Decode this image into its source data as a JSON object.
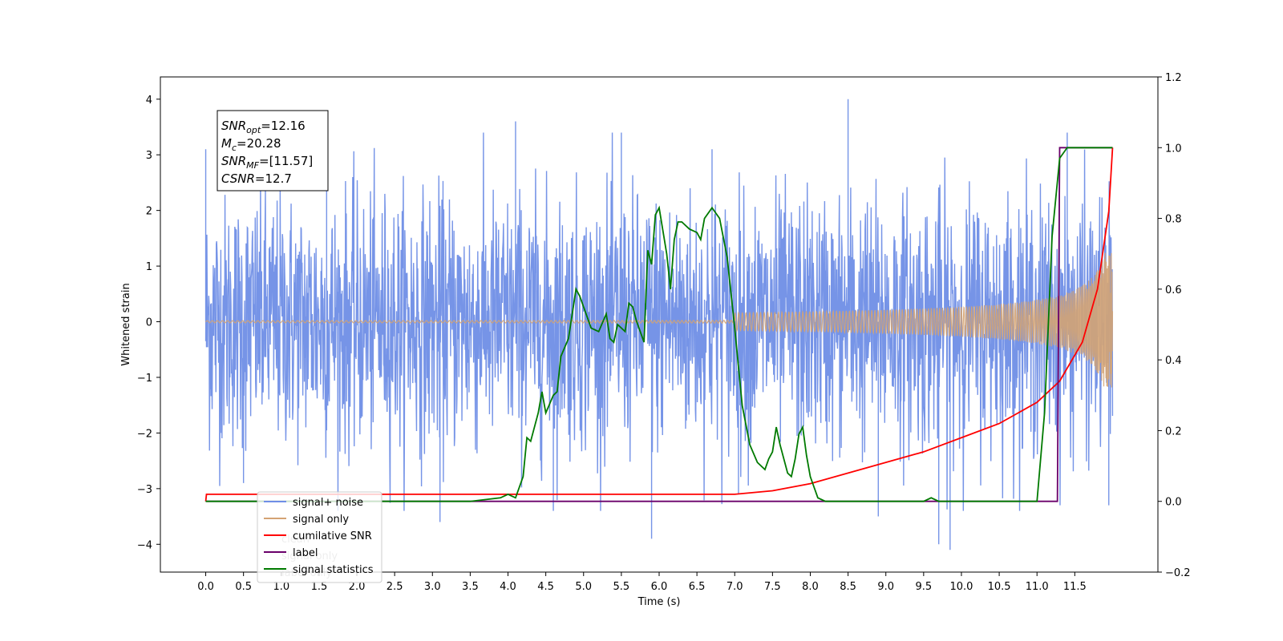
{
  "chart_data": {
    "type": "line",
    "xlabel": "Time (s)",
    "ylabel": "Whitened strain",
    "xlim": [
      -0.6,
      12.6
    ],
    "ylim": [
      -4.5,
      4.4
    ],
    "y2lim": [
      -0.2,
      1.2
    ],
    "x_ticks": [
      0.0,
      0.5,
      1.0,
      1.5,
      2.0,
      2.5,
      3.0,
      3.5,
      4.0,
      4.5,
      5.0,
      5.5,
      6.0,
      6.5,
      7.0,
      7.5,
      8.0,
      8.5,
      9.0,
      9.5,
      10.0,
      10.5,
      11.0,
      11.5
    ],
    "x_tick_labels": [
      "0.0",
      "0.5",
      "1.0",
      "1.5",
      "2.0",
      "2.5",
      "3.0",
      "3.5",
      "4.0",
      "4.5",
      "5.0",
      "5.5",
      "6.0",
      "6.5",
      "7.0",
      "7.5",
      "8.0",
      "8.5",
      "9.0",
      "9.5",
      "10.0",
      "10.5",
      "11.0",
      "11.5"
    ],
    "y_ticks": [
      -4,
      -3,
      -2,
      -1,
      0,
      1,
      2,
      3,
      4
    ],
    "y_tick_labels": [
      "−4",
      "−3",
      "−2",
      "−1",
      "0",
      "1",
      "2",
      "3",
      "4"
    ],
    "y2_ticks": [
      -0.2,
      0.0,
      0.2,
      0.4,
      0.6,
      0.8,
      1.0,
      1.2
    ],
    "y2_tick_labels": [
      "−0.2",
      "0.0",
      "0.2",
      "0.4",
      "0.6",
      "0.8",
      "1.0",
      "1.2"
    ],
    "grid": false,
    "legend_position": "bottom-left",
    "annotation": [
      {
        "sym": "SNR",
        "sub": "opt",
        "text": "=12.16"
      },
      {
        "sym": "M",
        "sub": "c",
        "text": "=20.28"
      },
      {
        "sym": "SNR",
        "sub": "MF",
        "text": "=[11.57]"
      },
      {
        "sym": "CSNR",
        "sub": "",
        "text": "=12.7"
      }
    ],
    "series": [
      {
        "name": "signal+ noise",
        "axis": "left",
        "color": "#6f8ee6",
        "x_range": [
          0.0,
          12.0
        ],
        "envelope": {
          "typical_amplitude": 1.5,
          "peak_amplitude": 4.0
        },
        "peaks": [
          [
            0.0,
            3.1
          ],
          [
            0.05,
            -2.2
          ],
          [
            0.5,
            -2.9
          ],
          [
            1.6,
            3.1
          ],
          [
            3.1,
            -3.6
          ],
          [
            4.1,
            3.6
          ],
          [
            4.6,
            -3.4
          ],
          [
            5.5,
            3.4
          ],
          [
            5.9,
            -3.9
          ],
          [
            6.7,
            3.1
          ],
          [
            7.05,
            -3.1
          ],
          [
            8.5,
            4.0
          ],
          [
            8.9,
            -3.5
          ],
          [
            9.7,
            -4.0
          ],
          [
            9.85,
            -4.1
          ],
          [
            11.4,
            3.4
          ],
          [
            11.95,
            -3.3
          ]
        ]
      },
      {
        "name": "signal only",
        "axis": "left",
        "color": "#d4a373",
        "x_range": [
          0.0,
          12.0
        ],
        "envelope": {
          "start_amplitude": 0.01,
          "end_amplitude": 1.25
        }
      },
      {
        "name": "cumilative SNR",
        "axis": "right",
        "color": "#ff0000",
        "x": [
          0.0,
          0.01,
          7.0,
          7.5,
          8.0,
          8.5,
          9.0,
          9.5,
          10.0,
          10.5,
          11.0,
          11.3,
          11.6,
          11.8,
          11.95,
          12.0
        ],
        "values": [
          0.0,
          0.02,
          0.02,
          0.03,
          0.05,
          0.08,
          0.11,
          0.14,
          0.18,
          0.22,
          0.28,
          0.34,
          0.45,
          0.6,
          0.82,
          1.0
        ]
      },
      {
        "name": "label",
        "axis": "right",
        "color": "#6a006a",
        "x": [
          0.0,
          11.27,
          11.3,
          12.0
        ],
        "values": [
          0.0,
          0.0,
          1.0,
          1.0
        ]
      },
      {
        "name": "signal statistics",
        "axis": "right",
        "color": "#007a00",
        "x": [
          0.0,
          3.0,
          3.5,
          3.9,
          4.0,
          4.1,
          4.2,
          4.25,
          4.3,
          4.4,
          4.45,
          4.5,
          4.6,
          4.65,
          4.7,
          4.8,
          4.9,
          4.95,
          5.05,
          5.1,
          5.2,
          5.3,
          5.35,
          5.4,
          5.45,
          5.55,
          5.6,
          5.65,
          5.7,
          5.8,
          5.85,
          5.9,
          5.95,
          6.0,
          6.1,
          6.15,
          6.2,
          6.25,
          6.3,
          6.4,
          6.5,
          6.55,
          6.6,
          6.7,
          6.8,
          6.9,
          7.0,
          7.1,
          7.2,
          7.3,
          7.4,
          7.45,
          7.5,
          7.55,
          7.6,
          7.7,
          7.75,
          7.8,
          7.85,
          7.9,
          7.95,
          8.0,
          8.1,
          8.2,
          9.5,
          9.6,
          9.7,
          11.0,
          11.1,
          11.2,
          11.3,
          11.4,
          11.5,
          12.0
        ],
        "values": [
          0.0,
          0.0,
          0.0,
          0.01,
          0.02,
          0.01,
          0.07,
          0.18,
          0.17,
          0.25,
          0.31,
          0.25,
          0.3,
          0.31,
          0.41,
          0.46,
          0.6,
          0.58,
          0.52,
          0.49,
          0.48,
          0.53,
          0.46,
          0.45,
          0.5,
          0.48,
          0.56,
          0.55,
          0.51,
          0.45,
          0.71,
          0.67,
          0.81,
          0.83,
          0.7,
          0.6,
          0.74,
          0.79,
          0.79,
          0.77,
          0.76,
          0.74,
          0.8,
          0.83,
          0.8,
          0.69,
          0.49,
          0.27,
          0.16,
          0.11,
          0.09,
          0.12,
          0.14,
          0.21,
          0.16,
          0.08,
          0.07,
          0.12,
          0.19,
          0.21,
          0.13,
          0.07,
          0.01,
          0.0,
          0.0,
          0.01,
          0.0,
          0.0,
          0.25,
          0.75,
          0.97,
          1.0,
          1.0,
          1.0
        ]
      }
    ],
    "legend_order": [
      "signal+ noise",
      "signal only",
      "cumilative SNR",
      "label",
      "signal statistics"
    ],
    "hidden_legend_text": [
      "clean",
      "signal only",
      "label only"
    ]
  }
}
